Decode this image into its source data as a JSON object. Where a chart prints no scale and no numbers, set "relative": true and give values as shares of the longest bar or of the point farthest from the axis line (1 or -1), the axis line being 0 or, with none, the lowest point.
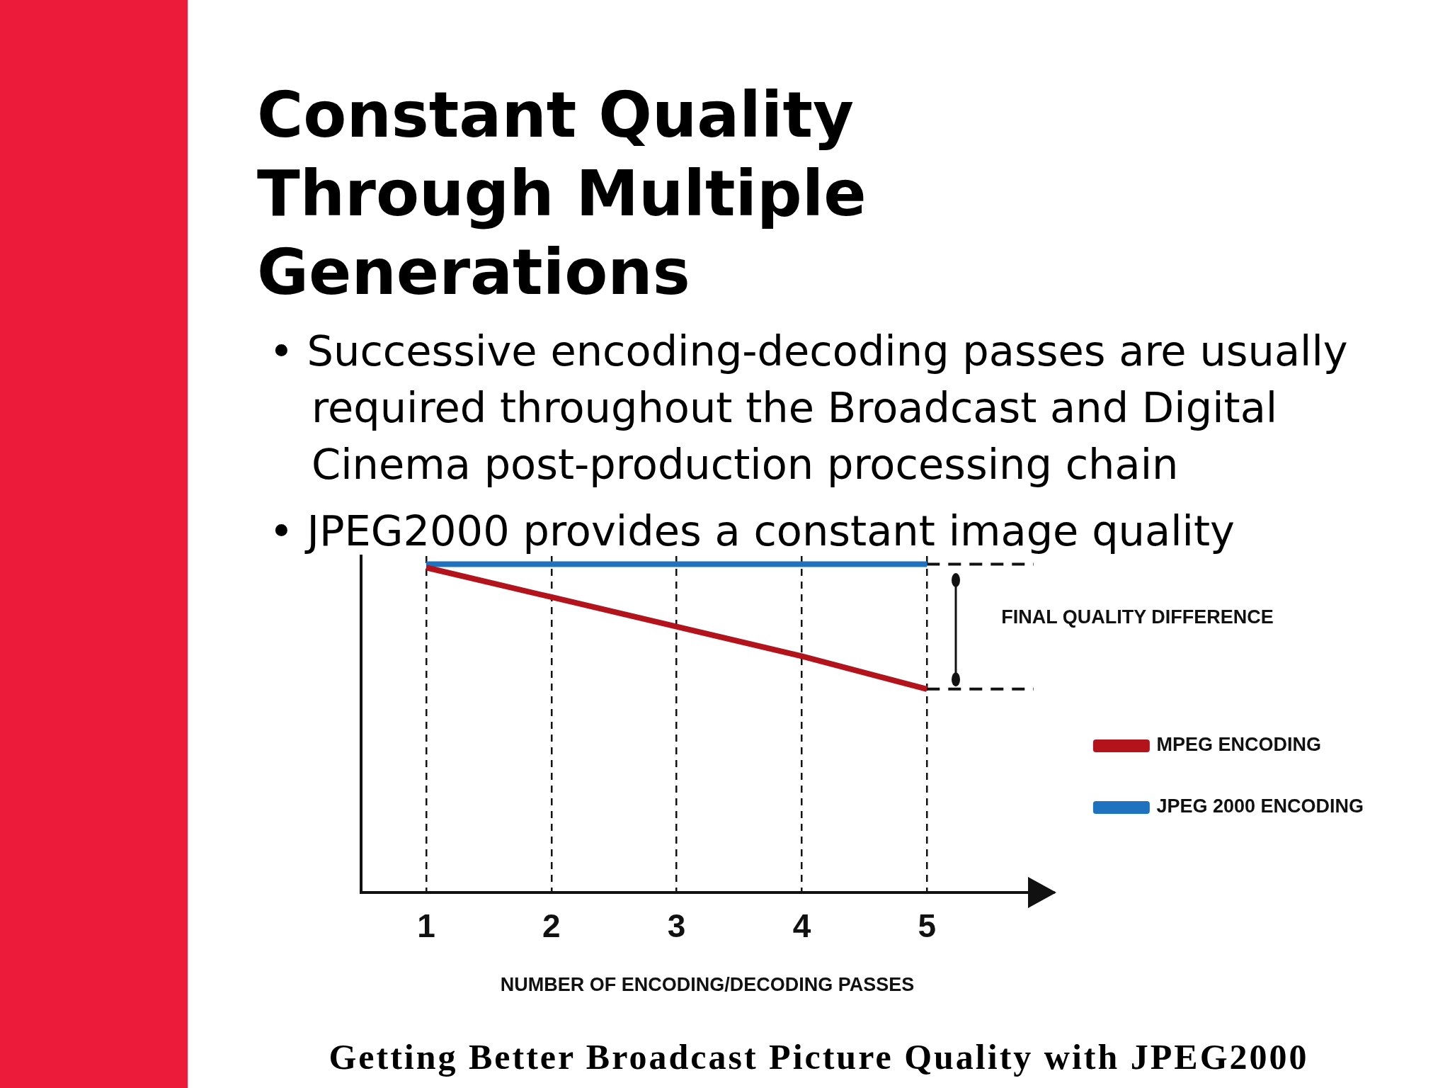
{
  "chart_data": {
    "type": "line",
    "title": "Constant Quality Through Multiple Generations",
    "xlabel": "NUMBER OF ENCODING/DECODING PASSES",
    "x": [
      1,
      2,
      3,
      4,
      5
    ],
    "series": [
      {
        "name": "MPEG ENCODING",
        "color": "#b3141c",
        "values": [
          0.99,
          0.9,
          0.81,
          0.72,
          0.62
        ]
      },
      {
        "name": "JPEG 2000 ENCODING",
        "color": "#1f72bd",
        "values": [
          1,
          1,
          1,
          1,
          1
        ]
      }
    ],
    "relative": true,
    "xlim": [
      0.48,
      6.01
    ],
    "xticks": [
      1,
      2,
      3,
      4,
      5
    ],
    "grid": "x",
    "legend": "right",
    "ref_lines": [
      {
        "axis": "y",
        "value": 1,
        "line_style": "dashed"
      },
      {
        "axis": "y",
        "value": 0.62,
        "line_style": "dashed"
      }
    ],
    "annotations": [
      "• Successive encoding-decoding passes are usually required throughout the Broadcast and Digital Cinema post-production processing chain",
      "• JPEG2000 provides a constant image quality",
      "FINAL QUALITY DIFFERENCE",
      "Getting Better Broadcast Picture Quality with JPEG2000"
    ]
  }
}
